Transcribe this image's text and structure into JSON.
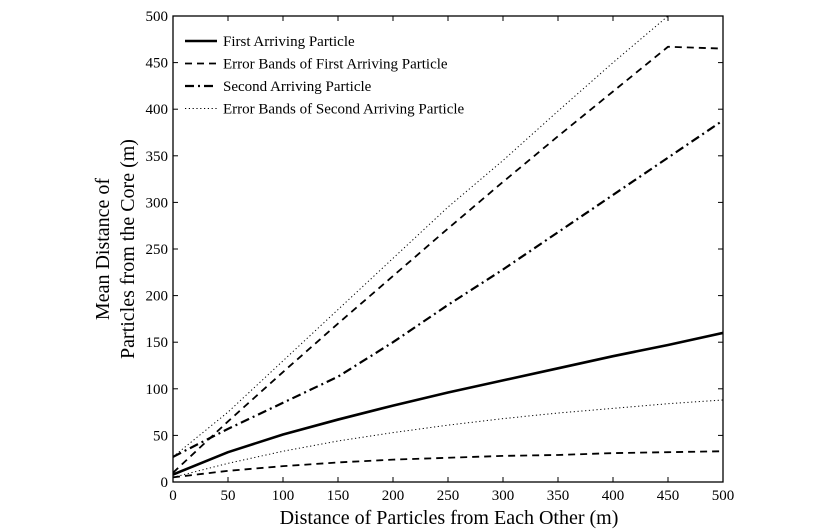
{
  "chart_data": {
    "type": "line",
    "title": "",
    "xlabel": "Distance of Particles from Each Other (m)",
    "ylabel_lines": [
      "Mean Distance of",
      "Particles from the Core (m)"
    ],
    "xlim": [
      0,
      500
    ],
    "ylim": [
      0,
      500
    ],
    "xticks": [
      0,
      50,
      100,
      150,
      200,
      250,
      300,
      350,
      400,
      450,
      500
    ],
    "yticks": [
      0,
      50,
      100,
      150,
      200,
      250,
      300,
      350,
      400,
      450,
      500
    ],
    "grid": false,
    "legend_position": "top-left",
    "x": [
      0,
      50,
      100,
      150,
      200,
      250,
      300,
      350,
      400,
      450,
      500
    ],
    "series": [
      {
        "name": "First Arriving Particle",
        "style": "solid",
        "values": [
          8,
          32,
          51,
          67,
          82,
          96,
          109,
          122,
          135,
          147,
          160
        ]
      },
      {
        "name": "Error Bands of First Arriving Particle",
        "style": "dashed",
        "band": "upper",
        "values": [
          10,
          65,
          118,
          170,
          221,
          272,
          322,
          371,
          419,
          467,
          465
        ]
      },
      {
        "name": "Error Bands of First Arriving Particle",
        "style": "dashed",
        "band": "lower",
        "values": [
          5,
          12,
          17,
          21,
          24,
          26,
          28,
          29,
          31,
          32,
          33
        ]
      },
      {
        "name": "Second Arriving Particle",
        "style": "dashdot",
        "values": [
          27,
          57,
          85,
          113,
          150,
          190,
          228,
          268,
          308,
          348,
          388
        ]
      },
      {
        "name": "Error Bands of Second Arriving Particle",
        "style": "dotted",
        "band": "upper",
        "values": [
          27,
          75,
          130,
          185,
          240,
          295,
          345,
          398,
          450,
          500,
          500
        ]
      },
      {
        "name": "Error Bands of Second Arriving Particle",
        "style": "dotted",
        "band": "lower",
        "values": [
          5,
          20,
          33,
          44,
          53,
          61,
          68,
          74,
          79,
          84,
          88
        ]
      }
    ],
    "legend": [
      {
        "label": "First Arriving Particle",
        "style": "solid"
      },
      {
        "label": "Error Bands of First Arriving Particle",
        "style": "dashed"
      },
      {
        "label": "Second Arriving Particle",
        "style": "dashdot"
      },
      {
        "label": "Error Bands of Second Arriving Particle",
        "style": "dotted"
      }
    ]
  }
}
